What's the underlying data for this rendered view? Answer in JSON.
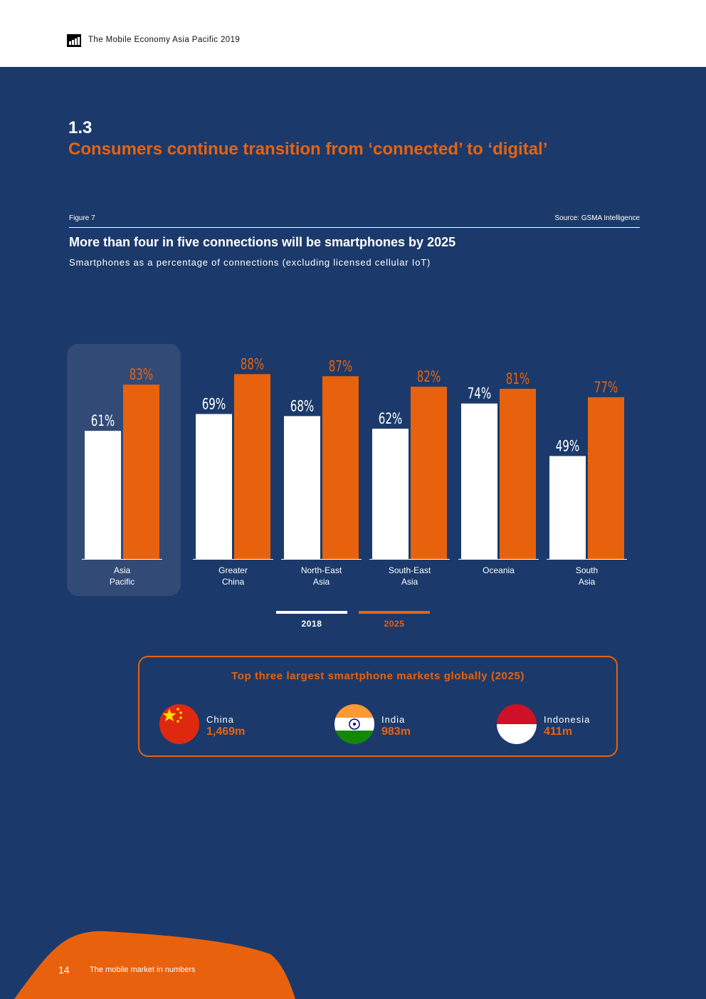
{
  "header": {
    "doc_title": "The Mobile Economy Asia Pacific 2019"
  },
  "section": {
    "number": "1.3",
    "title": "Consumers continue transition from ‘connected’ to ‘digital’"
  },
  "figure": {
    "label": "Figure 7",
    "source": "Source: GSMA Intelligence",
    "title": "More than four in five connections will be smartphones by 2025",
    "subtitle": "Smartphones as a percentage of connections (excluding licensed cellular IoT)"
  },
  "chart_data": {
    "type": "bar",
    "categories": [
      "Asia\nPacific",
      "Greater\nChina",
      "North-East\nAsia",
      "South-East\nAsia",
      "Oceania",
      "South\nAsia"
    ],
    "series": [
      {
        "name": "2018",
        "values": [
          61,
          69,
          68,
          62,
          74,
          49
        ],
        "labels": [
          "61%",
          "69%",
          "68%",
          "62%",
          "74%",
          "49%"
        ],
        "color": "#ffffff"
      },
      {
        "name": "2025",
        "values": [
          83,
          88,
          87,
          82,
          81,
          77
        ],
        "labels": [
          "83%",
          "88%",
          "87%",
          "82%",
          "81%",
          "77%"
        ],
        "color": "#e8620d"
      }
    ],
    "unit": "%",
    "ylim": [
      0,
      100
    ],
    "highlighted_category": "Asia\nPacific",
    "legend_position": "bottom-center",
    "grid": false
  },
  "markets": {
    "title": "Top three largest smartphone markets globally (2025)",
    "items": [
      {
        "name": "China",
        "value": "1,469m",
        "flag": "china-flag-icon"
      },
      {
        "name": "India",
        "value": "983m",
        "flag": "india-flag-icon"
      },
      {
        "name": "Indonesia",
        "value": "411m",
        "flag": "indonesia-flag-icon"
      }
    ]
  },
  "footer": {
    "page_number": "14",
    "section_name": "The mobile market in numbers"
  },
  "colors": {
    "background": "#1b3a6b",
    "accent": "#e8620d",
    "highlight_panel": "#324a76"
  }
}
